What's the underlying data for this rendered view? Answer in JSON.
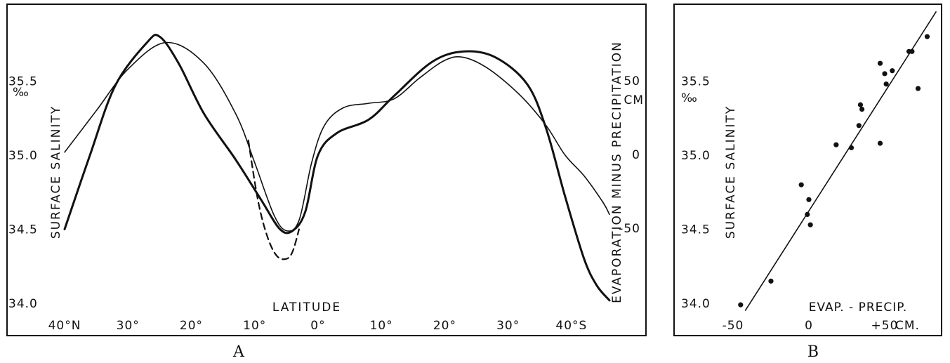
{
  "chart_data": [
    {
      "type": "line",
      "panel_label": "A",
      "xlabel": "LATITUDE",
      "ylabel_left": "SURFACE SALINITY",
      "ylabel_left_unit": "‰",
      "ylabel_right": "EVAPORATION MINUS PRECIPITATION",
      "ylabel_right_unit": "CM",
      "x_ticks": [
        {
          "value": 40,
          "label": "40°N"
        },
        {
          "value": 30,
          "label": "30°"
        },
        {
          "value": 20,
          "label": "20°"
        },
        {
          "value": 10,
          "label": "10°"
        },
        {
          "value": 0,
          "label": "0°"
        },
        {
          "value": -10,
          "label": "10°"
        },
        {
          "value": -20,
          "label": "20°"
        },
        {
          "value": -30,
          "label": "30°"
        },
        {
          "value": -40,
          "label": "40°S"
        }
      ],
      "xlim": [
        42,
        -46
      ],
      "y_left_ticks": [
        "34.0",
        "34.5",
        "35.0",
        "35.5"
      ],
      "y_left_values": [
        34.0,
        34.5,
        35.0,
        35.5
      ],
      "ylim_left": [
        33.95,
        36.0
      ],
      "y_right_ticks": [
        "-50",
        "0",
        "50"
      ],
      "y_right_values": [
        -50,
        0,
        50
      ],
      "series": [
        {
          "role": "salinity",
          "style": "thin",
          "axis": "left",
          "points": [
            [
              40,
              35.02
            ],
            [
              35,
              35.3
            ],
            [
              30,
              35.58
            ],
            [
              24,
              35.76
            ],
            [
              18,
              35.62
            ],
            [
              13,
              35.28
            ],
            [
              10,
              34.95
            ],
            [
              7,
              34.6
            ],
            [
              5,
              34.49
            ],
            [
              3,
              34.56
            ],
            [
              1,
              34.95
            ],
            [
              -1,
              35.2
            ],
            [
              -4,
              35.32
            ],
            [
              -8,
              35.35
            ],
            [
              -12,
              35.38
            ],
            [
              -16,
              35.52
            ],
            [
              -20,
              35.64
            ],
            [
              -23,
              35.66
            ],
            [
              -27,
              35.58
            ],
            [
              -32,
              35.4
            ],
            [
              -36,
              35.2
            ],
            [
              -39,
              35.0
            ],
            [
              -42,
              34.86
            ],
            [
              -45,
              34.68
            ],
            [
              -46,
              34.6
            ]
          ]
        },
        {
          "role": "evaporation-minus-precipitation",
          "style": "thick",
          "axis": "left",
          "points": [
            [
              40,
              34.5
            ],
            [
              36,
              35.0
            ],
            [
              32,
              35.47
            ],
            [
              27,
              35.76
            ],
            [
              25,
              35.8
            ],
            [
              22,
              35.62
            ],
            [
              18,
              35.28
            ],
            [
              13,
              34.97
            ],
            [
              9,
              34.7
            ],
            [
              6,
              34.5
            ],
            [
              4,
              34.49
            ],
            [
              2,
              34.62
            ],
            [
              0,
              35.0
            ],
            [
              -3,
              35.15
            ],
            [
              -8,
              35.24
            ],
            [
              -12,
              35.4
            ],
            [
              -18,
              35.63
            ],
            [
              -23,
              35.7
            ],
            [
              -28,
              35.66
            ],
            [
              -33,
              35.48
            ],
            [
              -36,
              35.18
            ],
            [
              -39,
              34.72
            ],
            [
              -42,
              34.3
            ],
            [
              -44,
              34.12
            ],
            [
              -46,
              34.02
            ]
          ]
        },
        {
          "role": "evaporation-minus-precipitation-dashed",
          "style": "dashed",
          "axis": "left",
          "points": [
            [
              11,
              35.1
            ],
            [
              9.5,
              34.7
            ],
            [
              8,
              34.45
            ],
            [
              6.5,
              34.32
            ],
            [
              5,
              34.3
            ],
            [
              4,
              34.35
            ],
            [
              3,
              34.5
            ]
          ]
        }
      ]
    },
    {
      "type": "scatter",
      "panel_label": "B",
      "xlabel": "EVAP. - PRECIP.",
      "xlabel_unit": "CM.",
      "ylabel": "SURFACE SALINITY",
      "ylabel_unit": "‰",
      "x_ticks": [
        {
          "value": -50,
          "label": "-50"
        },
        {
          "value": 0,
          "label": "0"
        },
        {
          "value": 50,
          "label": "+50"
        }
      ],
      "y_ticks": [
        "34.0",
        "34.5",
        "35.0",
        "35.5"
      ],
      "y_values": [
        34.0,
        34.5,
        35.0,
        35.5
      ],
      "xlim": [
        -70,
        90
      ],
      "ylim": [
        33.95,
        36.0
      ],
      "points": [
        [
          -45,
          33.99
        ],
        [
          -25,
          34.15
        ],
        [
          -5,
          34.8
        ],
        [
          0,
          34.7
        ],
        [
          -1,
          34.6
        ],
        [
          1,
          34.53
        ],
        [
          18,
          35.07
        ],
        [
          28,
          35.05
        ],
        [
          33,
          35.2
        ],
        [
          34,
          35.34
        ],
        [
          35,
          35.31
        ],
        [
          47,
          35.08
        ],
        [
          47,
          35.62
        ],
        [
          50,
          35.55
        ],
        [
          51,
          35.48
        ],
        [
          55,
          35.57
        ],
        [
          66,
          35.7
        ],
        [
          68,
          35.7
        ],
        [
          72,
          35.45
        ],
        [
          78,
          35.8
        ]
      ],
      "fit_line": [
        [
          -42,
          33.95
        ],
        [
          84,
          35.97
        ]
      ]
    }
  ]
}
